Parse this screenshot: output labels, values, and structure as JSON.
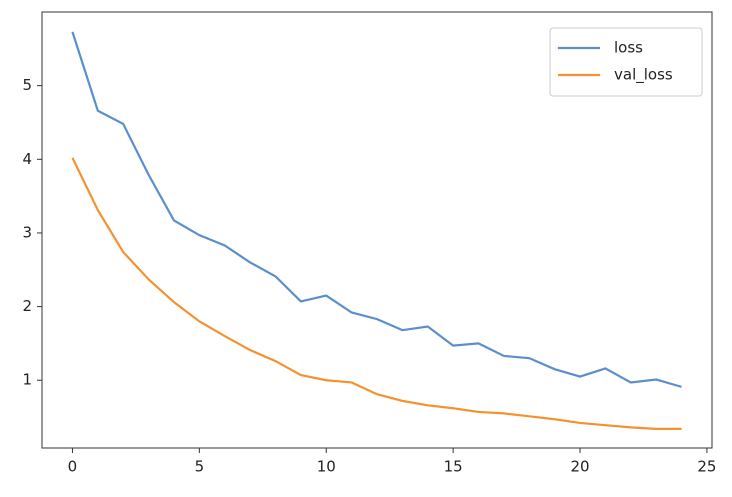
{
  "chart_data": {
    "type": "line",
    "x": [
      0,
      1,
      2,
      3,
      4,
      5,
      6,
      7,
      8,
      9,
      10,
      11,
      12,
      13,
      14,
      15,
      16,
      17,
      18,
      19,
      20,
      21,
      22,
      23,
      24
    ],
    "series": [
      {
        "name": "loss",
        "color": "#5b8fcb",
        "values": [
          5.73,
          4.66,
          4.48,
          3.79,
          3.17,
          2.97,
          2.83,
          2.6,
          2.41,
          2.07,
          2.15,
          1.92,
          1.83,
          1.68,
          1.73,
          1.47,
          1.5,
          1.33,
          1.3,
          1.15,
          1.05,
          1.16,
          0.97,
          1.01,
          0.91
        ]
      },
      {
        "name": "val_loss",
        "color": "#f5922f",
        "values": [
          4.02,
          3.31,
          2.74,
          2.37,
          2.06,
          1.8,
          1.6,
          1.41,
          1.26,
          1.07,
          1.0,
          0.97,
          0.81,
          0.72,
          0.66,
          0.62,
          0.57,
          0.55,
          0.51,
          0.47,
          0.42,
          0.39,
          0.36,
          0.34,
          0.34
        ]
      }
    ],
    "xlim": [
      -1.2,
      25.2
    ],
    "xticks": [
      0,
      5,
      10,
      15,
      20,
      25
    ],
    "ylim": [
      0.08,
      6.0
    ],
    "yticks": [
      1,
      2,
      3,
      4,
      5
    ],
    "grid": false,
    "legend": "upper right"
  }
}
